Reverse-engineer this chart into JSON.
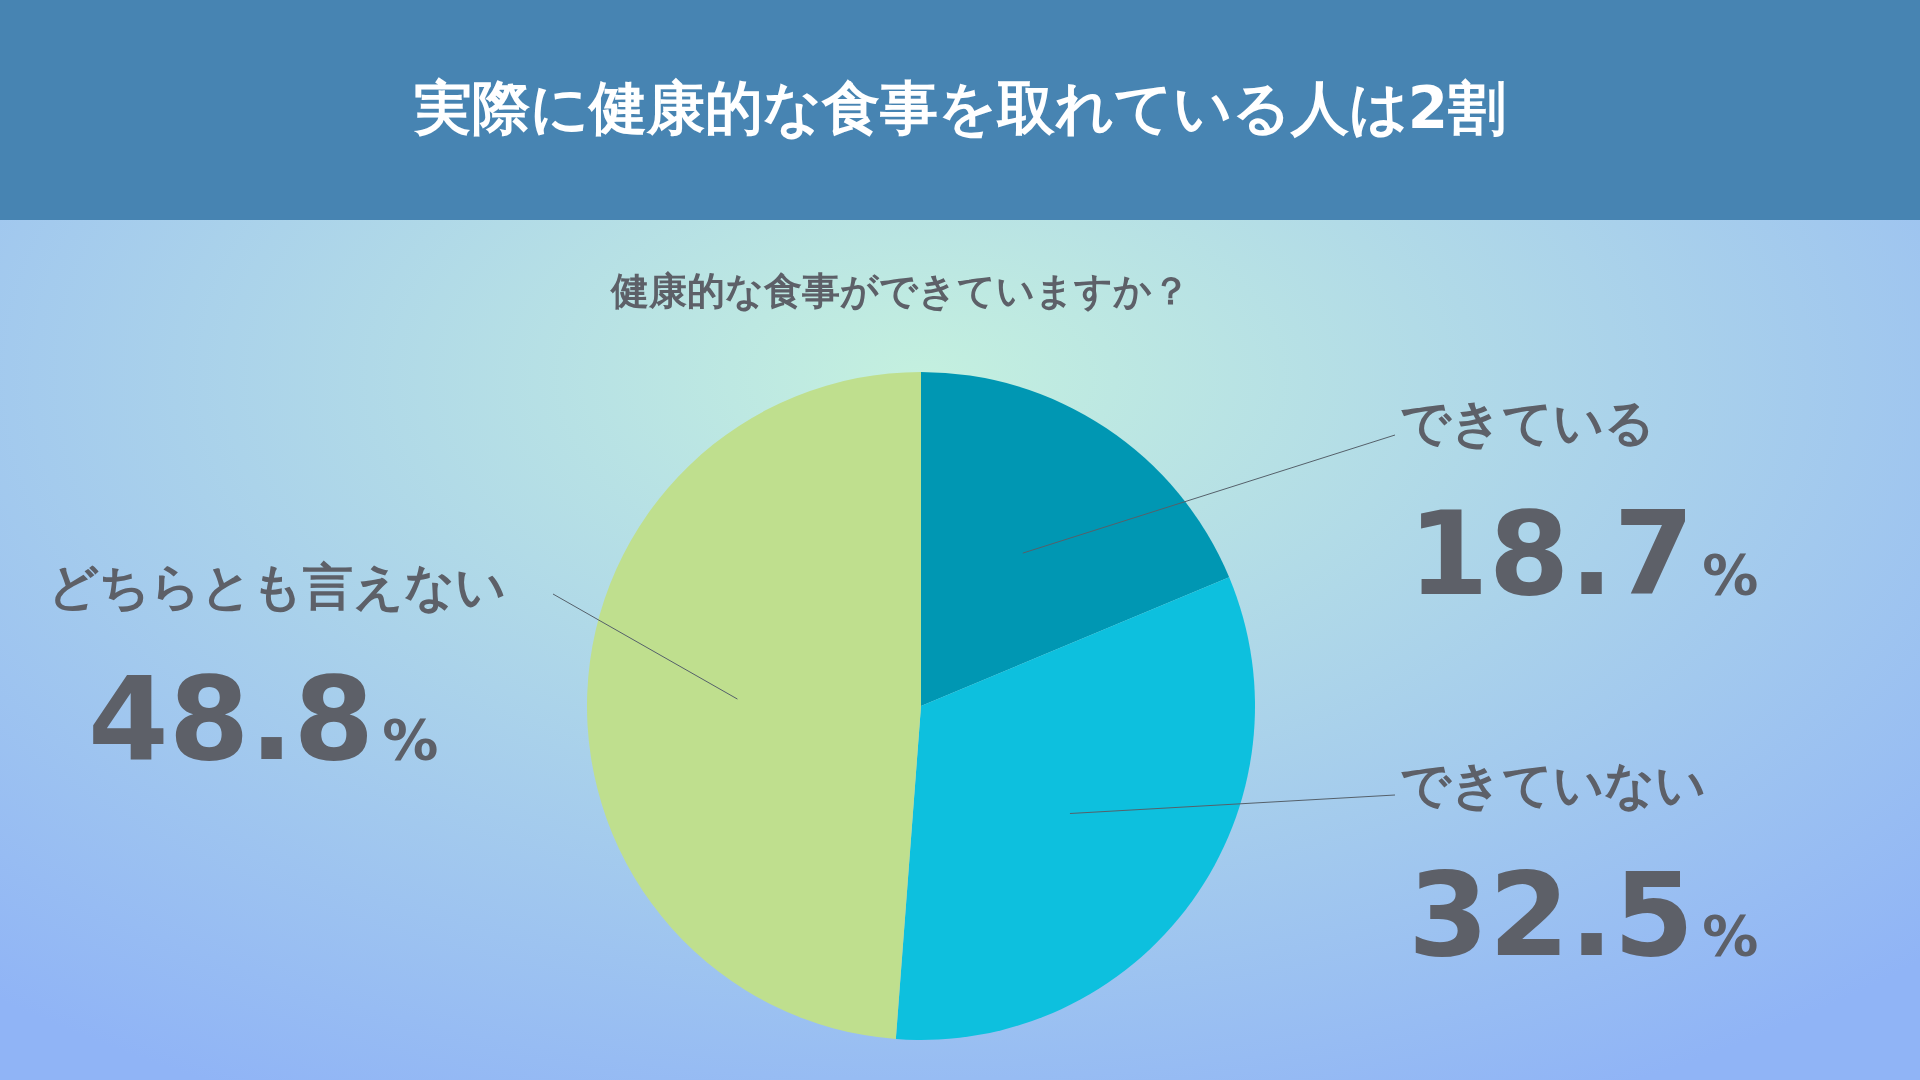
{
  "chart_data": {
    "type": "pie",
    "title": "実際に健康的な食事を取れている人は2割",
    "subtitle": "健康的な食事ができていますか？",
    "categories": [
      "できている",
      "できていない",
      "どちらとも言えない"
    ],
    "values": [
      18.7,
      32.5,
      48.8
    ],
    "value_labels": [
      "18.7%",
      "32.5%",
      "48.8%"
    ],
    "colors": [
      "#0097b3",
      "#0dc0de",
      "#bfdf8e"
    ]
  }
}
